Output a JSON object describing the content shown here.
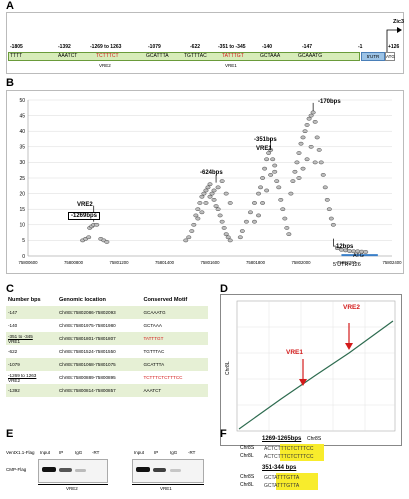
{
  "panels": {
    "a": "A",
    "b": "B",
    "c": "C",
    "d": "D",
    "e": "E",
    "f": "F"
  },
  "panelA": {
    "gene_label": "Zic3",
    "positions": [
      "-1805",
      "-1392",
      "-1269 to 1263",
      "-1079",
      "-622",
      "-351 to -345",
      "-140",
      "-147",
      "-1",
      "+126"
    ],
    "motifs": [
      "TTTT",
      "AAATCT",
      "TCTTTCT",
      "GCATTTA",
      "TGTTTAC",
      "TATTTGT",
      "GCTAAA",
      "GCAAATG"
    ],
    "vre2": "VRE2",
    "vre1": "VRE1",
    "utr": "5'UTR",
    "atg": "ATG"
  },
  "panelB": {
    "annotations": {
      "vre2": "VRE2",
      "bp1269": "-1269bps",
      "bp624": "-624bps",
      "bp351": "-351bps",
      "vre1": "VRE1",
      "bp170": "-170bps",
      "bp12": "-12bps",
      "atg": "ATG",
      "utr": "5'UTR+126"
    }
  },
  "chart_data": {
    "type": "scatter",
    "yticks": [
      "0",
      "5",
      "10",
      "15",
      "20",
      "25",
      "30",
      "35",
      "40",
      "45",
      "50"
    ],
    "xticks": [
      "75800600",
      "75800800",
      "75801200",
      "75801400",
      "75801600",
      "75801800",
      "75802000",
      "75802200",
      "75802400"
    ],
    "ylim": [
      0,
      50
    ],
    "xlim": [
      75800600,
      75802400
    ],
    "grid": true,
    "series": [
      {
        "values": [
          [
            75800870,
            5
          ],
          [
            75800885,
            5.5
          ],
          [
            75800900,
            6
          ],
          [
            75800905,
            9
          ],
          [
            75800915,
            9.5
          ],
          [
            75800925,
            10
          ],
          [
            75800940,
            10
          ],
          [
            75800960,
            5.5
          ],
          [
            75800975,
            5
          ],
          [
            75800990,
            4.5
          ],
          [
            75801380,
            5
          ],
          [
            75801395,
            6
          ],
          [
            75801410,
            8
          ],
          [
            75801420,
            10
          ],
          [
            75801430,
            13
          ],
          [
            75801440,
            15
          ],
          [
            75801450,
            17
          ],
          [
            75801460,
            19
          ],
          [
            75801470,
            20
          ],
          [
            75801480,
            21
          ],
          [
            75801490,
            22
          ],
          [
            75801500,
            23
          ],
          [
            75801510,
            20
          ],
          [
            75801520,
            18
          ],
          [
            75801530,
            16
          ],
          [
            75801540,
            15
          ],
          [
            75801550,
            13
          ],
          [
            75801560,
            11
          ],
          [
            75801570,
            9
          ],
          [
            75801580,
            7
          ],
          [
            75801590,
            6
          ],
          [
            75801600,
            5
          ],
          [
            75801440,
            12
          ],
          [
            75801460,
            14
          ],
          [
            75801480,
            17
          ],
          [
            75801500,
            19
          ],
          [
            75801520,
            21
          ],
          [
            75801540,
            22
          ],
          [
            75801560,
            24
          ],
          [
            75801580,
            20
          ],
          [
            75801600,
            17
          ],
          [
            75801650,
            6
          ],
          [
            75801660,
            8
          ],
          [
            75801680,
            11
          ],
          [
            75801700,
            14
          ],
          [
            75801720,
            17
          ],
          [
            75801740,
            20
          ],
          [
            75801750,
            22
          ],
          [
            75801760,
            25
          ],
          [
            75801770,
            28
          ],
          [
            75801780,
            31
          ],
          [
            75801790,
            33
          ],
          [
            75801800,
            34
          ],
          [
            75801810,
            31
          ],
          [
            75801820,
            27
          ],
          [
            75801830,
            24
          ],
          [
            75801840,
            22
          ],
          [
            75801850,
            18
          ],
          [
            75801860,
            15
          ],
          [
            75801870,
            12
          ],
          [
            75801880,
            9
          ],
          [
            75801890,
            7
          ],
          [
            75801720,
            11
          ],
          [
            75801740,
            13
          ],
          [
            75801760,
            17
          ],
          [
            75801780,
            21
          ],
          [
            75801800,
            26
          ],
          [
            75801820,
            29
          ],
          [
            75801900,
            20
          ],
          [
            75801910,
            24
          ],
          [
            75801920,
            27
          ],
          [
            75801930,
            30
          ],
          [
            75801940,
            33
          ],
          [
            75801950,
            36
          ],
          [
            75801960,
            38
          ],
          [
            75801970,
            40
          ],
          [
            75801980,
            42
          ],
          [
            75801990,
            44
          ],
          [
            75802000,
            45
          ],
          [
            75802010,
            46
          ],
          [
            75802020,
            43
          ],
          [
            75802030,
            38
          ],
          [
            75802040,
            34
          ],
          [
            75802050,
            30
          ],
          [
            75802060,
            26
          ],
          [
            75802070,
            22
          ],
          [
            75802080,
            18
          ],
          [
            75802090,
            15
          ],
          [
            75802100,
            12
          ],
          [
            75802110,
            10
          ],
          [
            75801940,
            25
          ],
          [
            75801960,
            28
          ],
          [
            75801980,
            31
          ],
          [
            75802000,
            35
          ],
          [
            75802020,
            30
          ],
          [
            75802130,
            2.5
          ],
          [
            75802150,
            2
          ],
          [
            75802170,
            1.8
          ],
          [
            75802190,
            1.6
          ],
          [
            75802210,
            1.5
          ],
          [
            75802230,
            1.5
          ],
          [
            75802250,
            1.4
          ],
          [
            75802270,
            1.3
          ]
        ]
      }
    ]
  },
  "panelC": {
    "headers": [
      "Number bps",
      "Genomic location",
      "Conserved Motif"
    ],
    "rows": [
      {
        "bps": "-147",
        "bps2": "",
        "loc": "Chr8S:75802086-75802093",
        "motif": "GCAAATG"
      },
      {
        "bps": "-140",
        "bps2": "",
        "loc": "Chr8S:75801975-75801980",
        "motif": "GCTAAA"
      },
      {
        "bps": "-351 to -345",
        "bps2": "VRE1",
        "loc": "Chr8S:75801801-75801807",
        "motif": "TATTTGT"
      },
      {
        "bps": "-622",
        "bps2": "",
        "loc": "Chr8S:75801524-75801550",
        "motif": "TGTTTAC"
      },
      {
        "bps": "-1079",
        "bps2": "",
        "loc": "Chr8S:75801068-75801075",
        "motif": "GCATTTA"
      },
      {
        "bps": "-1269 to 1263",
        "bps2": "VRE2",
        "loc": "Chr8S:75800889-75800895",
        "motif": "TCTTTCTCTTTCC"
      },
      {
        "bps": "-1392",
        "bps2": "",
        "loc": "Chr8S:75800814-75800857",
        "motif": "AAATCT"
      }
    ]
  },
  "panelD": {
    "vre1": "VRE1",
    "vre2": "VRE2",
    "xlabel": "Chr8S",
    "ylabel": "Chr8L"
  },
  "panelE": {
    "construct": "VentX1.1-Flag",
    "row_label": "CMP-Flag",
    "lanes_left": [
      "Input",
      "IP",
      "IgG",
      "-RT"
    ],
    "lanes_right": [
      "Input",
      "IP",
      "IgG",
      "-RT"
    ],
    "group_left": "VRE2",
    "group_right": "VRE1"
  },
  "panelF": {
    "title1": "1269-1265bps",
    "title2": "351-344 bps",
    "row_labels": [
      "Chr8S",
      "Chr8L",
      "Chr8S",
      "Chr8L"
    ]
  }
}
